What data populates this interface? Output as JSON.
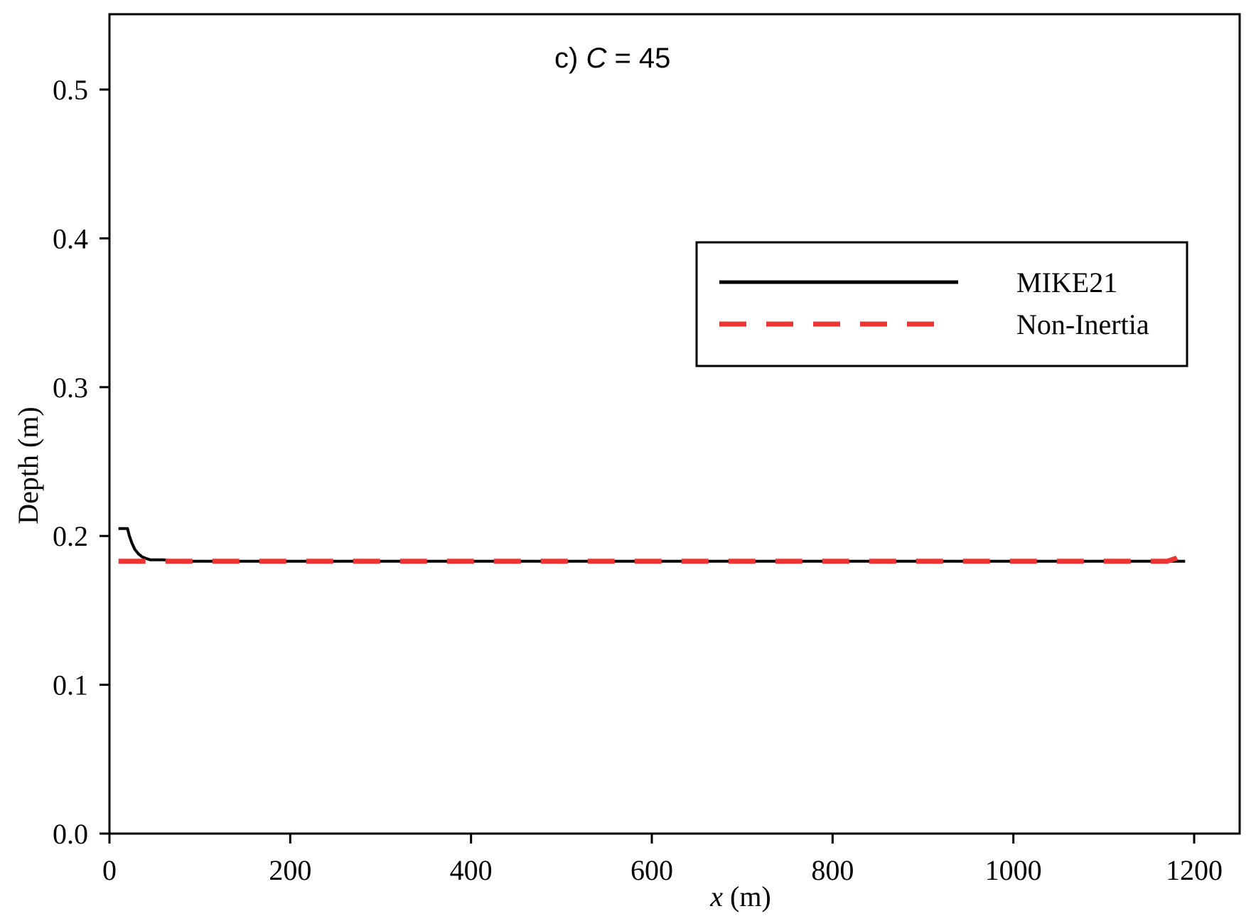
{
  "chart_data": {
    "type": "line",
    "panel_label": {
      "prefix": "c) ",
      "variable": "C",
      "suffix": " = 45"
    },
    "xlabel": {
      "variable": "x",
      "unit": " (m)"
    },
    "ylabel": "Depth (m)",
    "xlim": [
      0,
      1250
    ],
    "ylim": [
      0,
      0.55
    ],
    "x_ticks": [
      0,
      200,
      400,
      600,
      800,
      1000,
      1200
    ],
    "x_tick_labels": [
      "0",
      "200",
      "400",
      "600",
      "800",
      "1000",
      "1200"
    ],
    "y_ticks": [
      0.0,
      0.1,
      0.2,
      0.3,
      0.4,
      0.5
    ],
    "y_tick_labels": [
      "0.0",
      "0.1",
      "0.2",
      "0.3",
      "0.4",
      "0.5"
    ],
    "grid": false,
    "legend": {
      "placement": "upper-right"
    },
    "series": [
      {
        "name": "MIKE21",
        "color": "#000000",
        "style": "solid",
        "x": [
          10,
          20,
          22,
          25,
          28,
          32,
          36,
          40,
          45,
          50,
          60,
          75,
          100,
          200,
          300,
          400,
          500,
          600,
          700,
          800,
          900,
          1000,
          1100,
          1190
        ],
        "y": [
          0.205,
          0.205,
          0.2,
          0.195,
          0.191,
          0.188,
          0.186,
          0.185,
          0.184,
          0.184,
          0.184,
          0.183,
          0.183,
          0.183,
          0.183,
          0.183,
          0.183,
          0.183,
          0.183,
          0.183,
          0.183,
          0.183,
          0.183,
          0.183
        ]
      },
      {
        "name": "Non-Inertia",
        "color": "#ee3333",
        "style": "dashed",
        "x": [
          10,
          200,
          400,
          600,
          800,
          1000,
          1170,
          1180,
          1186,
          1190
        ],
        "y": [
          0.183,
          0.183,
          0.183,
          0.183,
          0.183,
          0.183,
          0.183,
          0.185,
          0.187,
          0.189
        ]
      }
    ]
  }
}
